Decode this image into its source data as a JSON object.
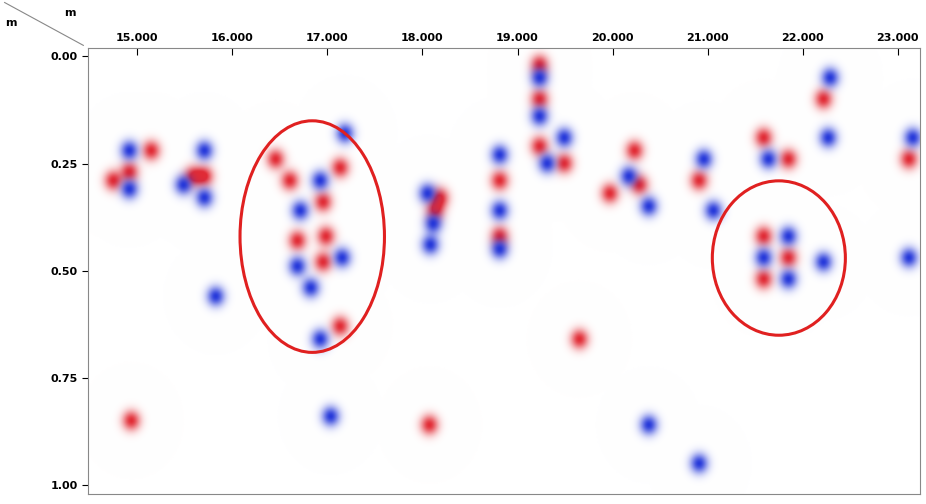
{
  "chart_data": {
    "type": "radargram",
    "x_unit": "m",
    "y_unit": "m",
    "xlim": [
      14.48,
      23.24
    ],
    "xticks": [
      {
        "value": 15,
        "label": "15.000"
      },
      {
        "value": 16,
        "label": "16.000"
      },
      {
        "value": 17,
        "label": "17.000"
      },
      {
        "value": 18,
        "label": "18.000"
      },
      {
        "value": 19,
        "label": "19.000"
      },
      {
        "value": 20,
        "label": "20.000"
      },
      {
        "value": 21,
        "label": "21.000"
      },
      {
        "value": 22,
        "label": "22.000"
      },
      {
        "value": 23,
        "label": "23.000"
      }
    ],
    "ylim": [
      -0.02,
      1.02
    ],
    "yticks": [
      {
        "value": 0,
        "label": "0.00"
      },
      {
        "value": 0.25,
        "label": "0.25"
      },
      {
        "value": 0.5,
        "label": "0.50"
      },
      {
        "value": 0.75,
        "label": "0.75"
      },
      {
        "value": 1,
        "label": "1.00"
      }
    ],
    "series": [
      {
        "color": "#e0202a",
        "points": [
          [
            14.91,
            0.27
          ],
          [
            14.74,
            0.29
          ],
          [
            15.14,
            0.22
          ],
          [
            15.7,
            0.28
          ],
          [
            15.58,
            0.28
          ],
          [
            16.6,
            0.29
          ],
          [
            16.95,
            0.34
          ],
          [
            16.68,
            0.43
          ],
          [
            16.98,
            0.42
          ],
          [
            17.13,
            0.26
          ],
          [
            16.45,
            0.24
          ],
          [
            16.95,
            0.48
          ],
          [
            17.13,
            0.63
          ],
          [
            18.18,
            0.33
          ],
          [
            18.13,
            0.36
          ],
          [
            18.81,
            0.29
          ],
          [
            18.81,
            0.42
          ],
          [
            19.23,
            0.21
          ],
          [
            19.49,
            0.25
          ],
          [
            19.23,
            0.02
          ],
          [
            19.23,
            0.1
          ],
          [
            20.23,
            0.22
          ],
          [
            20.28,
            0.3
          ],
          [
            19.97,
            0.32
          ],
          [
            20.91,
            0.29
          ],
          [
            21.59,
            0.19
          ],
          [
            21.85,
            0.24
          ],
          [
            21.59,
            0.42
          ],
          [
            21.85,
            0.47
          ],
          [
            21.59,
            0.52
          ],
          [
            22.22,
            0.1
          ],
          [
            23.12,
            0.24
          ],
          [
            14.93,
            0.85
          ],
          [
            18.07,
            0.86
          ],
          [
            19.65,
            0.66
          ]
        ]
      },
      {
        "color": "#1a2ed8",
        "points": [
          [
            14.91,
            0.22
          ],
          [
            14.91,
            0.31
          ],
          [
            15.7,
            0.22
          ],
          [
            15.7,
            0.33
          ],
          [
            15.48,
            0.3
          ],
          [
            16.71,
            0.36
          ],
          [
            16.92,
            0.29
          ],
          [
            16.68,
            0.49
          ],
          [
            17.15,
            0.47
          ],
          [
            17.18,
            0.18
          ],
          [
            16.82,
            0.54
          ],
          [
            16.92,
            0.66
          ],
          [
            18.05,
            0.32
          ],
          [
            18.11,
            0.39
          ],
          [
            18.08,
            0.44
          ],
          [
            18.81,
            0.23
          ],
          [
            18.81,
            0.36
          ],
          [
            18.81,
            0.45
          ],
          [
            19.31,
            0.25
          ],
          [
            19.49,
            0.19
          ],
          [
            19.23,
            0.05
          ],
          [
            19.23,
            0.14
          ],
          [
            20.17,
            0.28
          ],
          [
            20.38,
            0.35
          ],
          [
            20.96,
            0.24
          ],
          [
            21.06,
            0.36
          ],
          [
            21.64,
            0.24
          ],
          [
            21.85,
            0.42
          ],
          [
            21.59,
            0.47
          ],
          [
            22.22,
            0.48
          ],
          [
            21.85,
            0.52
          ],
          [
            22.27,
            0.19
          ],
          [
            22.29,
            0.05
          ],
          [
            23.16,
            0.19
          ],
          [
            23.12,
            0.47
          ],
          [
            15.82,
            0.56
          ],
          [
            17.03,
            0.84
          ],
          [
            20.38,
            0.86
          ],
          [
            20.91,
            0.95
          ]
        ]
      }
    ],
    "highlights": [
      {
        "x": 16.84,
        "depth": 0.42,
        "width": 1.52,
        "height": 0.54,
        "color": "#e02020"
      },
      {
        "x": 21.75,
        "depth": 0.47,
        "width": 1.4,
        "height": 0.36,
        "color": "#e02020"
      }
    ]
  }
}
